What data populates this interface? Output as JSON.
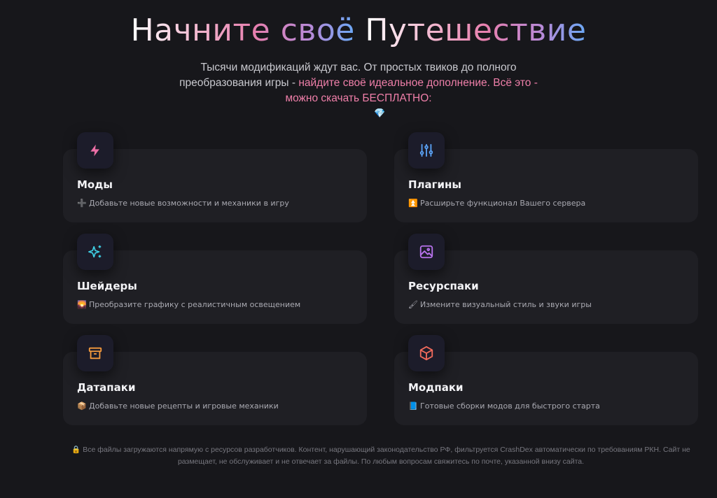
{
  "header": {
    "title_part1": "Начните своё",
    "title_part2": "Путешествие",
    "subtitle_plain": "Тысячи модификаций ждут вас. От простых твиков до полного преобразования игры - ",
    "subtitle_highlight": "найдите своё идеальное дополнение. Всё это - можно скачать БЕСПЛАТНО:",
    "gem": "💎"
  },
  "accent": {
    "pink": "#ef7fa9",
    "blue": "#6aa8f5"
  },
  "cards": [
    {
      "title": "Моды",
      "icon": "lightning-icon",
      "emoji": "➕",
      "desc": "Добавьте новые возможности и механики в игру"
    },
    {
      "title": "Плагины",
      "icon": "sliders-icon",
      "emoji": "⏫",
      "desc": "Расширьте функционал Вашего сервера"
    },
    {
      "title": "Шейдеры",
      "icon": "sparkles-icon",
      "emoji": "🌄",
      "desc": "Преобразите графику с реалистичным освещением"
    },
    {
      "title": "Ресурспаки",
      "icon": "image-icon",
      "emoji": "🖌",
      "desc": "Измените визуальный стиль и звуки игры"
    },
    {
      "title": "Датапаки",
      "icon": "archive-icon",
      "emoji": "📦",
      "desc": "Добавьте новые рецепты и игровые механики"
    },
    {
      "title": "Модпаки",
      "icon": "cube-icon",
      "emoji": "📘",
      "desc": "Готовые сборки модов для быстрого старта"
    }
  ],
  "footer": {
    "lock": "🔒",
    "text": "Все файлы загружаются напрямую с ресурсов разработчиков. Контент, нарушающий законодательство РФ, фильтруется CrashDex автоматически по требованиям РКН. Сайт не размещает, не обслуживает и не отвечает за файлы. По любым вопросам свяжитесь по почте, указанной внизу сайта."
  }
}
